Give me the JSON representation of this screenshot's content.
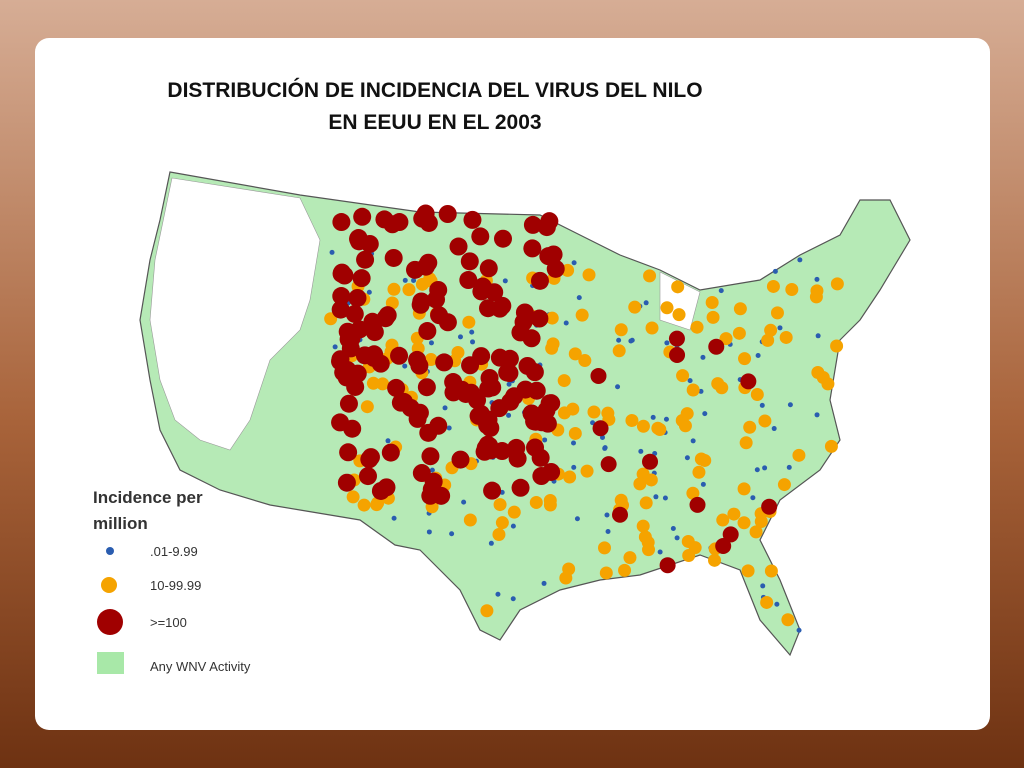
{
  "title": [
    "DISTRIBUCIÓN DE INCIDENCIA DEL VIRUS DEL NILO",
    "EN EEUU EN EL 2003"
  ],
  "legend": {
    "title": [
      "Incidence per",
      "million"
    ],
    "items": [
      ".01-9.99",
      "10-99.99",
      ">=100",
      "Any WNV Activity"
    ]
  }
}
